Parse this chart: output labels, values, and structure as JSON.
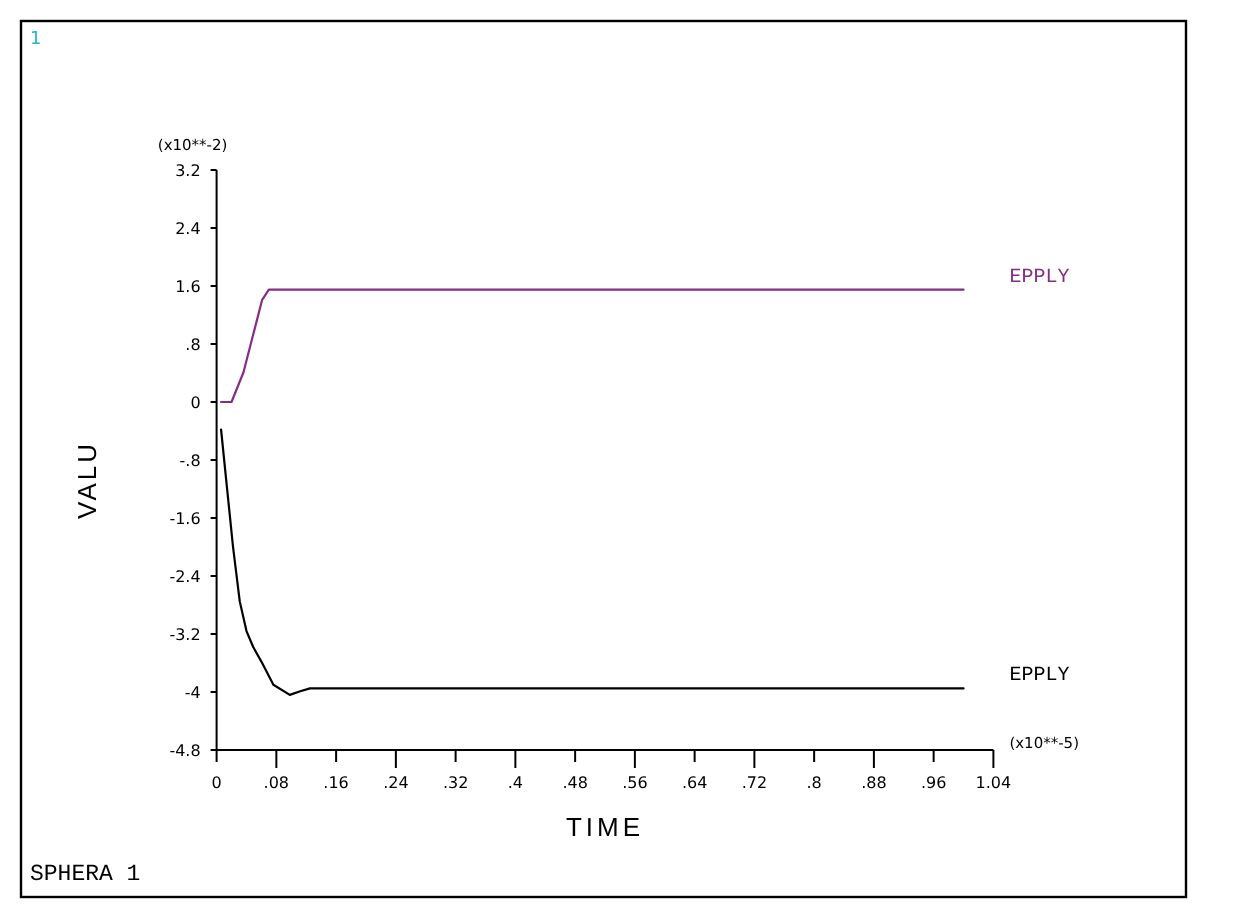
{
  "chart_data": {
    "type": "line",
    "title": "SPHERA 1",
    "xlabel": "TIME",
    "ylabel": "VALU",
    "annotations": [
      "(x10**-2)",
      "(x10**-5)",
      "1"
    ],
    "xlim": [
      0,
      1.04
    ],
    "ylim": [
      -4.8,
      3.2
    ],
    "xticks": [
      0,
      {
        "value": 0.08,
        "label": ".08"
      },
      {
        "value": 0.16,
        "label": ".16"
      },
      {
        "value": 0.24,
        "label": ".24"
      },
      {
        "value": 0.32,
        "label": ".32"
      },
      {
        "value": 0.4,
        "label": ".4"
      },
      {
        "value": 0.48,
        "label": ".48"
      },
      {
        "value": 0.56,
        "label": ".56"
      },
      {
        "value": 0.64,
        "label": ".64"
      },
      {
        "value": 0.72,
        "label": ".72"
      },
      {
        "value": 0.8,
        "label": ".8"
      },
      {
        "value": 0.88,
        "label": ".88"
      },
      {
        "value": 0.96,
        "label": ".96"
      },
      1.04
    ],
    "yticks": [
      -4.8,
      -4,
      -3.2,
      -2.4,
      -1.6,
      {
        "value": -0.8,
        "label": "-.8"
      },
      0,
      {
        "value": 0.8,
        "label": ".8"
      },
      1.6,
      2.4,
      3.2
    ],
    "line_style": "solid",
    "series": [
      {
        "name": "EPPLY",
        "color": "#852d85",
        "x": [
          0.006,
          0.02,
          0.036,
          0.061,
          0.07,
          1.0
        ],
        "values": [
          0,
          0,
          0.41,
          1.41,
          1.55,
          1.55
        ]
      },
      {
        "name": "EPPLY",
        "color": "#000000",
        "x": [
          0.006,
          0.013,
          0.022,
          0.031,
          0.04,
          0.049,
          0.061,
          0.076,
          0.098,
          0.112,
          0.125,
          1.0
        ],
        "values": [
          -0.38,
          -1.09,
          -2.0,
          -2.75,
          -3.16,
          -3.38,
          -3.6,
          -3.9,
          -4.04,
          -3.99,
          -3.95,
          -3.95
        ]
      }
    ]
  }
}
